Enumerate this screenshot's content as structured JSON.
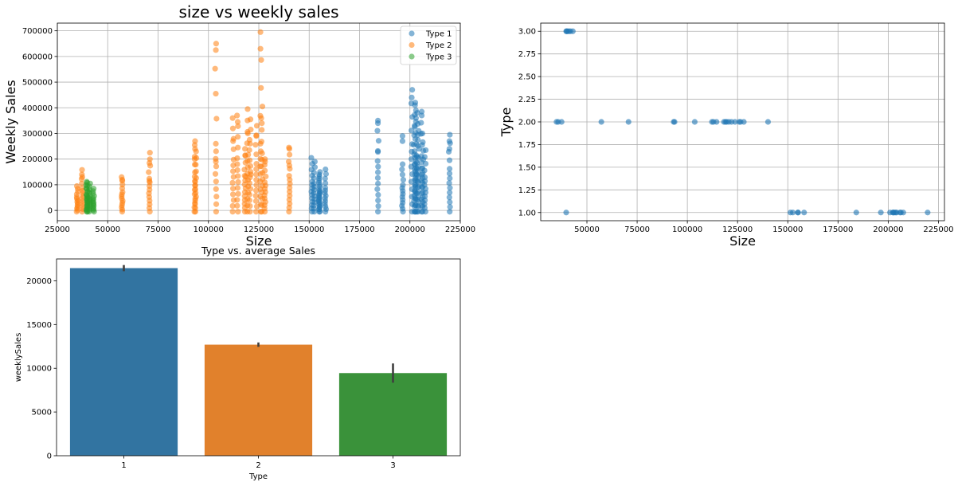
{
  "chart_data": [
    {
      "id": "size-vs-weekly-sales",
      "type": "scatter",
      "title": "size vs weekly sales",
      "xlabel": "Size",
      "ylabel": "Weekly Sales",
      "xlim": [
        25000,
        225000
      ],
      "ylim": [
        -40000,
        730000
      ],
      "xticks": [
        25000,
        50000,
        75000,
        100000,
        125000,
        150000,
        175000,
        200000,
        225000
      ],
      "yticks": [
        0,
        100000,
        200000,
        300000,
        400000,
        500000,
        600000,
        700000
      ],
      "grid": true,
      "legend": "top-right",
      "series": [
        {
          "name": "Type 1",
          "color": "#1f77b4",
          "stores": [
            {
              "size": 151315,
              "max": 205000
            },
            {
              "size": 152513,
              "max": 190000
            },
            {
              "size": 155078,
              "max": 150000
            },
            {
              "size": 155083,
              "max": 140000
            },
            {
              "size": 158114,
              "max": 160000
            },
            {
              "size": 184109,
              "max": 350000
            },
            {
              "size": 196321,
              "max": 180000
            },
            {
              "size": 200898,
              "max": 470000
            },
            {
              "size": 202307,
              "max": 330000
            },
            {
              "size": 202505,
              "max": 420000
            },
            {
              "size": 203007,
              "max": 390000
            },
            {
              "size": 203742,
              "max": 380000
            },
            {
              "size": 204184,
              "max": 310000
            },
            {
              "size": 205863,
              "max": 385000
            },
            {
              "size": 206302,
              "max": 300000
            },
            {
              "size": 207499,
              "max": 235000
            },
            {
              "size": 219622,
              "max": 295000
            }
          ],
          "outliers": [
            [
              184109,
              340000
            ],
            [
              184109,
              228000
            ],
            [
              196321,
              290000
            ],
            [
              196321,
              270000
            ],
            [
              200898,
              440000
            ],
            [
              202505,
              410000
            ],
            [
              203007,
              360000
            ],
            [
              205863,
              370000
            ],
            [
              219622,
              270000
            ],
            [
              219622,
              240000
            ]
          ]
        },
        {
          "name": "Type 2",
          "color": "#ff7f0e",
          "stores": [
            {
              "size": 34875,
              "max": 95000
            },
            {
              "size": 37392,
              "max": 158000
            },
            {
              "size": 57197,
              "max": 130000
            },
            {
              "size": 70713,
              "max": 225000
            },
            {
              "size": 93188,
              "max": 270000
            },
            {
              "size": 93638,
              "max": 230000
            },
            {
              "size": 103681,
              "max": 650000
            },
            {
              "size": 112238,
              "max": 360000
            },
            {
              "size": 114533,
              "max": 370000
            },
            {
              "size": 118221,
              "max": 240000
            },
            {
              "size": 119557,
              "max": 395000
            },
            {
              "size": 120653,
              "max": 355000
            },
            {
              "size": 123737,
              "max": 330000
            },
            {
              "size": 125833,
              "max": 695000
            },
            {
              "size": 126512,
              "max": 405000
            },
            {
              "size": 128107,
              "max": 200000
            },
            {
              "size": 140167,
              "max": 245000
            }
          ],
          "outliers": [
            [
              103681,
              625000
            ],
            [
              125833,
              630000
            ],
            [
              126512,
              340000
            ],
            [
              123737,
              290000
            ],
            [
              120653,
              260000
            ],
            [
              112238,
              270000
            ],
            [
              114533,
              345000
            ],
            [
              119557,
              300000
            ],
            [
              128107,
              190000
            ],
            [
              70713,
              185000
            ],
            [
              93188,
              255000
            ],
            [
              140167,
              240000
            ],
            [
              140167,
              175000
            ],
            [
              118221,
              215000
            ],
            [
              57197,
              120000
            ],
            [
              37392,
              130000
            ],
            [
              70713,
              115000
            ],
            [
              93188,
              200000
            ],
            [
              103681,
              190000
            ],
            [
              121000,
              140000
            ],
            [
              118000,
              135000
            ]
          ]
        },
        {
          "name": "Type 3",
          "color": "#2ca02c",
          "stores": [
            {
              "size": 39690,
              "max": 112000
            },
            {
              "size": 39910,
              "max": 108000
            },
            {
              "size": 41062,
              "max": 105000
            },
            {
              "size": 42988,
              "max": 85000
            }
          ],
          "outliers": []
        }
      ]
    },
    {
      "id": "size-vs-type",
      "type": "scatter",
      "title": "",
      "xlabel": "Size",
      "ylabel": "Type",
      "xlim": [
        27000,
        228000
      ],
      "ylim": [
        0.91,
        3.09
      ],
      "xticks": [
        50000,
        75000,
        100000,
        125000,
        150000,
        175000,
        200000,
        225000
      ],
      "yticks": [
        1.0,
        1.25,
        1.5,
        1.75,
        2.0,
        2.25,
        2.5,
        2.75,
        3.0
      ],
      "ytick_labels": [
        "1.00",
        "1.25",
        "1.50",
        "1.75",
        "2.00",
        "2.25",
        "2.50",
        "2.75",
        "3.00"
      ],
      "grid": true,
      "color": "#1f77b4",
      "points": [
        [
          39690,
          3
        ],
        [
          39910,
          3
        ],
        [
          40300,
          3
        ],
        [
          41062,
          3
        ],
        [
          41800,
          3
        ],
        [
          42988,
          3
        ],
        [
          34875,
          2
        ],
        [
          35700,
          2
        ],
        [
          37392,
          2
        ],
        [
          57197,
          2
        ],
        [
          70713,
          2
        ],
        [
          93188,
          2
        ],
        [
          93638,
          2
        ],
        [
          103681,
          2
        ],
        [
          112238,
          2
        ],
        [
          113000,
          2
        ],
        [
          114533,
          2
        ],
        [
          118221,
          2
        ],
        [
          119000,
          2
        ],
        [
          119557,
          2
        ],
        [
          120653,
          2
        ],
        [
          122000,
          2
        ],
        [
          123737,
          2
        ],
        [
          125833,
          2
        ],
        [
          126512,
          2
        ],
        [
          128107,
          2
        ],
        [
          140167,
          2
        ],
        [
          39690,
          1
        ],
        [
          151315,
          1
        ],
        [
          152513,
          1
        ],
        [
          155078,
          1
        ],
        [
          155083,
          1
        ],
        [
          158114,
          1
        ],
        [
          184109,
          1
        ],
        [
          196321,
          1
        ],
        [
          200898,
          1
        ],
        [
          202307,
          1
        ],
        [
          202505,
          1
        ],
        [
          203007,
          1
        ],
        [
          203742,
          1
        ],
        [
          204184,
          1
        ],
        [
          205863,
          1
        ],
        [
          206302,
          1
        ],
        [
          207499,
          1
        ],
        [
          219622,
          1
        ]
      ]
    },
    {
      "id": "type-vs-average-sales",
      "type": "bar",
      "title": "Type vs. average Sales",
      "xlabel": "Type",
      "ylabel": "weeklySales",
      "categories": [
        "1",
        "2",
        "3"
      ],
      "values": [
        21450,
        12700,
        9450
      ],
      "error": [
        [
          21100,
          21800
        ],
        [
          12450,
          12950
        ],
        [
          8350,
          10550
        ]
      ],
      "colors": [
        "#3274a1",
        "#e1812c",
        "#3a923a"
      ],
      "ylim": [
        0,
        22500
      ],
      "yticks": [
        0,
        5000,
        10000,
        15000,
        20000
      ]
    }
  ]
}
